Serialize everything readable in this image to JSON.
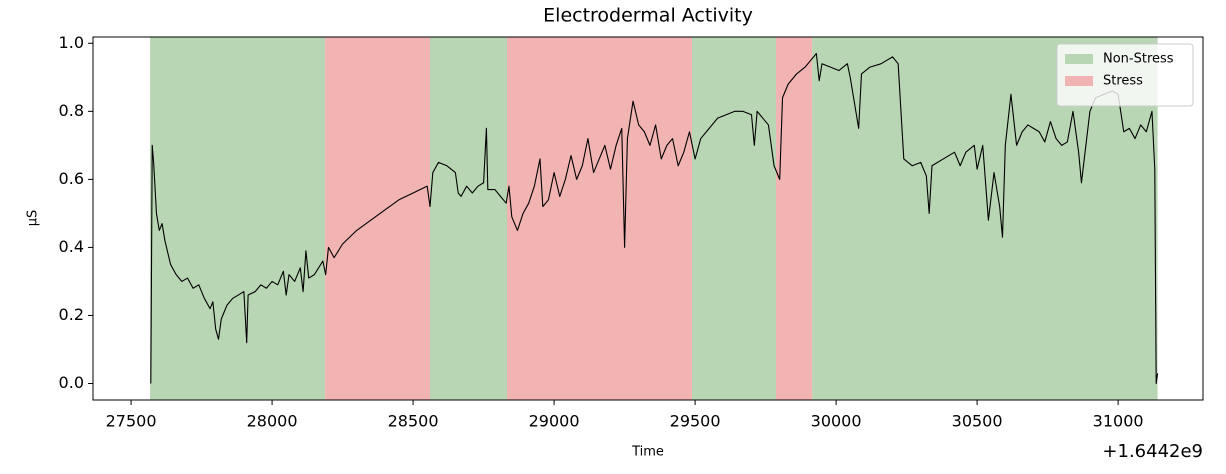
{
  "chart_data": {
    "type": "line",
    "title": "Electrodermal Activity",
    "x_label": "Time",
    "y_label": "µS",
    "x_offset_label": "+1.6442e9",
    "xlim": [
      27365,
      31301
    ],
    "ylim": [
      -0.0485,
      1.0185
    ],
    "xticks": [
      27500,
      28000,
      28500,
      29000,
      29500,
      30000,
      30500,
      31000
    ],
    "yticks": [
      {
        "value": 0,
        "label": "0.0"
      },
      0.2,
      0.4,
      0.6,
      0.8,
      {
        "value": 1,
        "label": "1.0"
      }
    ],
    "legend": "upper right",
    "spans": [
      {
        "name": "Non-Stress",
        "color": "#b9d6b4",
        "ranges": [
          [
            27567,
            28188
          ],
          [
            28560,
            28833
          ],
          [
            29489,
            29787
          ],
          [
            29915,
            31140
          ]
        ]
      },
      {
        "name": "Stress",
        "color": "#f2b3b3",
        "ranges": [
          [
            28188,
            28560
          ],
          [
            28833,
            29489
          ],
          [
            29787,
            29915
          ]
        ]
      }
    ],
    "line": {
      "color": "#000000",
      "x": [
        27570,
        27575,
        27580,
        27590,
        27600,
        27610,
        27620,
        27640,
        27660,
        27680,
        27700,
        27720,
        27740,
        27760,
        27780,
        27790,
        27800,
        27810,
        27820,
        27840,
        27860,
        27880,
        27900,
        27910,
        27915,
        27940,
        27960,
        27980,
        28000,
        28020,
        28040,
        28050,
        28060,
        28080,
        28100,
        28110,
        28120,
        28130,
        28150,
        28180,
        28190,
        28200,
        28220,
        28250,
        28300,
        28350,
        28400,
        28450,
        28500,
        28550,
        28560,
        28570,
        28590,
        28620,
        28650,
        28660,
        28670,
        28690,
        28710,
        28730,
        28750,
        28760,
        28765,
        28790,
        28810,
        28830,
        28840,
        28850,
        28870,
        28890,
        28910,
        28930,
        28950,
        28960,
        28980,
        29000,
        29020,
        29040,
        29060,
        29080,
        29100,
        29120,
        29140,
        29160,
        29180,
        29200,
        29220,
        29240,
        29250,
        29260,
        29280,
        29300,
        29320,
        29340,
        29360,
        29380,
        29400,
        29420,
        29440,
        29460,
        29480,
        29500,
        29520,
        29550,
        29580,
        29610,
        29640,
        29670,
        29700,
        29710,
        29720,
        29760,
        29780,
        29800,
        29810,
        29830,
        29860,
        29890,
        29910,
        29930,
        29940,
        29950,
        29980,
        30010,
        30040,
        30050,
        30060,
        30070,
        30080,
        30090,
        30120,
        30160,
        30200,
        30220,
        30240,
        30270,
        30300,
        30320,
        30330,
        30340,
        30380,
        30420,
        30440,
        30460,
        30490,
        30500,
        30520,
        30540,
        30560,
        30580,
        30590,
        30600,
        30620,
        30640,
        30660,
        30680,
        30700,
        30720,
        30740,
        30760,
        30780,
        30800,
        30820,
        30840,
        30860,
        30870,
        30880,
        30900,
        30920,
        30950,
        30980,
        31000,
        31020,
        31040,
        31060,
        31080,
        31100,
        31120,
        31130,
        31135,
        31140
      ],
      "values": [
        0.0,
        0.7,
        0.65,
        0.5,
        0.45,
        0.47,
        0.42,
        0.35,
        0.32,
        0.3,
        0.31,
        0.28,
        0.29,
        0.25,
        0.22,
        0.24,
        0.16,
        0.13,
        0.19,
        0.23,
        0.25,
        0.26,
        0.27,
        0.12,
        0.26,
        0.27,
        0.29,
        0.28,
        0.3,
        0.29,
        0.33,
        0.26,
        0.32,
        0.3,
        0.34,
        0.27,
        0.39,
        0.31,
        0.32,
        0.36,
        0.32,
        0.4,
        0.37,
        0.41,
        0.45,
        0.48,
        0.51,
        0.54,
        0.56,
        0.58,
        0.52,
        0.62,
        0.65,
        0.64,
        0.62,
        0.56,
        0.55,
        0.58,
        0.56,
        0.58,
        0.59,
        0.75,
        0.57,
        0.57,
        0.55,
        0.53,
        0.58,
        0.49,
        0.45,
        0.5,
        0.53,
        0.58,
        0.66,
        0.52,
        0.54,
        0.62,
        0.55,
        0.6,
        0.67,
        0.6,
        0.64,
        0.72,
        0.62,
        0.66,
        0.7,
        0.63,
        0.7,
        0.75,
        0.4,
        0.72,
        0.83,
        0.76,
        0.74,
        0.7,
        0.76,
        0.66,
        0.7,
        0.72,
        0.64,
        0.68,
        0.74,
        0.66,
        0.72,
        0.75,
        0.78,
        0.79,
        0.8,
        0.8,
        0.79,
        0.7,
        0.8,
        0.76,
        0.64,
        0.6,
        0.84,
        0.88,
        0.91,
        0.93,
        0.95,
        0.97,
        0.89,
        0.94,
        0.93,
        0.92,
        0.94,
        0.9,
        0.85,
        0.8,
        0.75,
        0.91,
        0.93,
        0.94,
        0.96,
        0.94,
        0.66,
        0.64,
        0.65,
        0.61,
        0.5,
        0.64,
        0.66,
        0.68,
        0.64,
        0.68,
        0.7,
        0.63,
        0.7,
        0.48,
        0.62,
        0.52,
        0.43,
        0.7,
        0.85,
        0.7,
        0.74,
        0.76,
        0.75,
        0.74,
        0.71,
        0.77,
        0.72,
        0.7,
        0.71,
        0.8,
        0.68,
        0.59,
        0.66,
        0.8,
        0.84,
        0.85,
        0.86,
        0.85,
        0.74,
        0.75,
        0.72,
        0.76,
        0.74,
        0.8,
        0.63,
        0.0,
        0.03
      ]
    }
  }
}
